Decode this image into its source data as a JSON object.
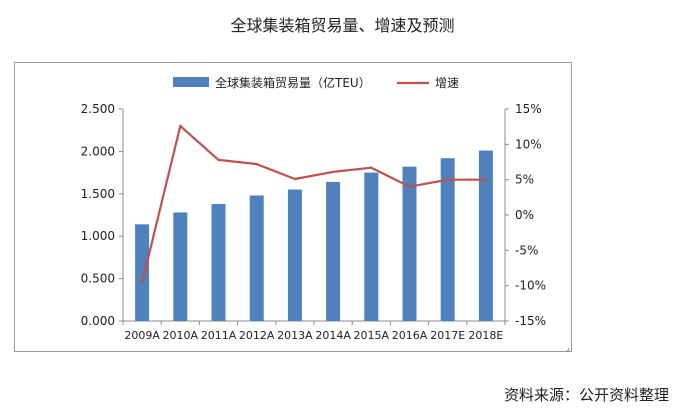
{
  "page_title": "全球集装箱贸易量、增速及预测",
  "source_note": "资料来源：公开资料整理",
  "colors": {
    "bar": "#4f81bd",
    "line": "#c0504d",
    "axis": "#8c8c8c",
    "text": "#222222"
  },
  "chart_data": {
    "type": "bar",
    "title": "",
    "categories": [
      "2009A",
      "2010A",
      "2011A",
      "2012A",
      "2013A",
      "2014A",
      "2015A",
      "2016A",
      "2017E",
      "2018E"
    ],
    "series": [
      {
        "name": "全球集装箱贸易量（亿TEU）",
        "type": "bar",
        "axis": "left",
        "values": [
          1.14,
          1.28,
          1.38,
          1.48,
          1.55,
          1.64,
          1.75,
          1.82,
          1.92,
          2.01
        ]
      },
      {
        "name": "增速",
        "type": "line",
        "axis": "right",
        "values": [
          -9.6,
          12.6,
          7.8,
          7.2,
          5.1,
          6.1,
          6.7,
          4.0,
          5.0,
          5.0
        ]
      }
    ],
    "left_axis": {
      "range": [
        0,
        2.5
      ],
      "ticks": [
        "0.000",
        "0.500",
        "1.000",
        "1.500",
        "2.000",
        "2.500"
      ]
    },
    "right_axis": {
      "range": [
        -15,
        15
      ],
      "ticks": [
        "-15%",
        "-10%",
        "-5%",
        "0%",
        "5%",
        "10%",
        "15%"
      ]
    },
    "legend_position": "top-center",
    "grid": false
  }
}
